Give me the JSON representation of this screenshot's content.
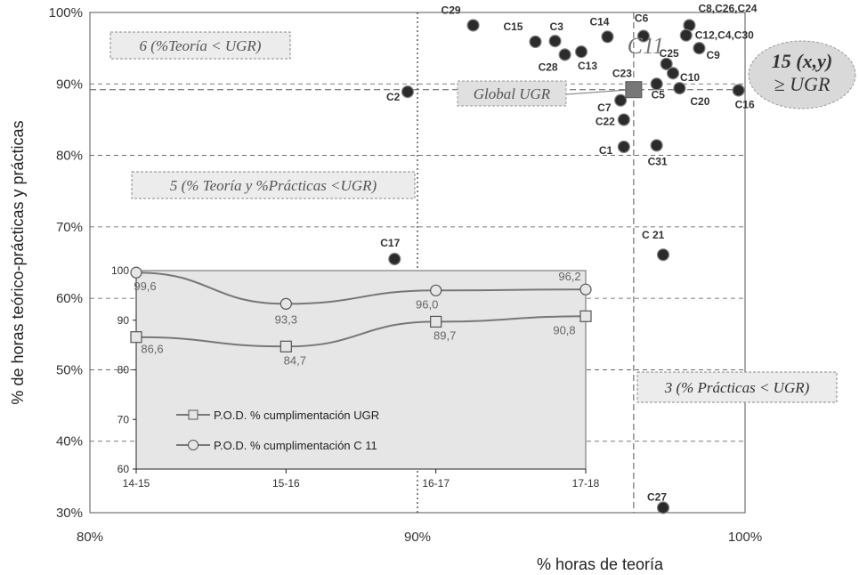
{
  "chart_data": [
    {
      "type": "scatter",
      "xlabel": "% horas de teoría",
      "ylabel": "% de horas teórico-prácticas y prácticas",
      "xlim": [
        80,
        100
      ],
      "ylim": [
        30,
        100
      ],
      "x_ticks": [
        "80%",
        "90%",
        "100%"
      ],
      "y_ticks": [
        "30%",
        "40%",
        "50%",
        "60%",
        "70%",
        "80%",
        "90%",
        "100%"
      ],
      "grid": "dashed horizontal",
      "global": {
        "label": "Global UGR",
        "x": 96.6,
        "y": 89.2
      },
      "highlight": {
        "label": "C11",
        "x": 97.3,
        "y": 95.4
      },
      "points": [
        {
          "label": "C29",
          "x": 91.7,
          "y": 98.2
        },
        {
          "label": "C15",
          "x": 93.6,
          "y": 95.9
        },
        {
          "label": "C3",
          "x": 94.2,
          "y": 96.0
        },
        {
          "label": "C28",
          "x": 94.5,
          "y": 94.1
        },
        {
          "label": "C13",
          "x": 95.0,
          "y": 94.5
        },
        {
          "label": "C14",
          "x": 95.8,
          "y": 96.6
        },
        {
          "label": "C6",
          "x": 96.9,
          "y": 96.7
        },
        {
          "label": "C8,C26,C24",
          "x": 98.3,
          "y": 98.2
        },
        {
          "label": "C12,C4,C30",
          "x": 98.2,
          "y": 96.8
        },
        {
          "label": "C9",
          "x": 98.6,
          "y": 95.0
        },
        {
          "label": "C25",
          "x": 97.6,
          "y": 92.8
        },
        {
          "label": "C10",
          "x": 97.8,
          "y": 91.5
        },
        {
          "label": "C5",
          "x": 97.3,
          "y": 90.0
        },
        {
          "label": "C20",
          "x": 98.0,
          "y": 89.4
        },
        {
          "label": "C16",
          "x": 99.8,
          "y": 89.1
        },
        {
          "label": "C2",
          "x": 89.7,
          "y": 88.9
        },
        {
          "label": "C7",
          "x": 96.2,
          "y": 87.7
        },
        {
          "label": "C22",
          "x": 96.3,
          "y": 85.0
        },
        {
          "label": "C1",
          "x": 96.3,
          "y": 81.2
        },
        {
          "label": "C31",
          "x": 97.3,
          "y": 81.4
        },
        {
          "label": "C17",
          "x": 89.3,
          "y": 65.5
        },
        {
          "label": "C 21",
          "x": 97.5,
          "y": 66.1
        },
        {
          "label": "C27",
          "x": 97.5,
          "y": 30.7
        }
      ],
      "annotations": [
        {
          "text": "6 (%Teoría < UGR)"
        },
        {
          "text": "5 (% Teoría y %Prácticas <UGR)"
        },
        {
          "text": "3 (% Prácticas < UGR)"
        },
        {
          "text_line1": "15 (x,y)",
          "text_line2": "≥ UGR"
        }
      ]
    },
    {
      "type": "line",
      "categories": [
        "14-15",
        "15-16",
        "16-17",
        "17-18"
      ],
      "ylim": [
        60,
        100
      ],
      "y_ticks": [
        "60",
        "70",
        "80",
        "90",
        "100"
      ],
      "series": [
        {
          "name": "P.O.D. %  cumplimentación UGR",
          "marker": "square",
          "values": [
            86.6,
            84.7,
            89.7,
            90.8
          ],
          "labels": [
            "86,6",
            "84,7",
            "89,7",
            "90,8"
          ]
        },
        {
          "name": "P.O.D. %  cumplimentación C 11",
          "marker": "circle",
          "values": [
            99.6,
            93.3,
            96.0,
            96.2
          ],
          "labels": [
            "99,6",
            "93,3",
            "96,0",
            "96,2"
          ]
        }
      ]
    }
  ],
  "colors": {
    "point": "#2b2b2b",
    "grid": "#555555",
    "inset_bg": "#e6e6e6",
    "ellipse": "#d9d9d9",
    "zone_box": "#ececec",
    "line": "#777777"
  }
}
